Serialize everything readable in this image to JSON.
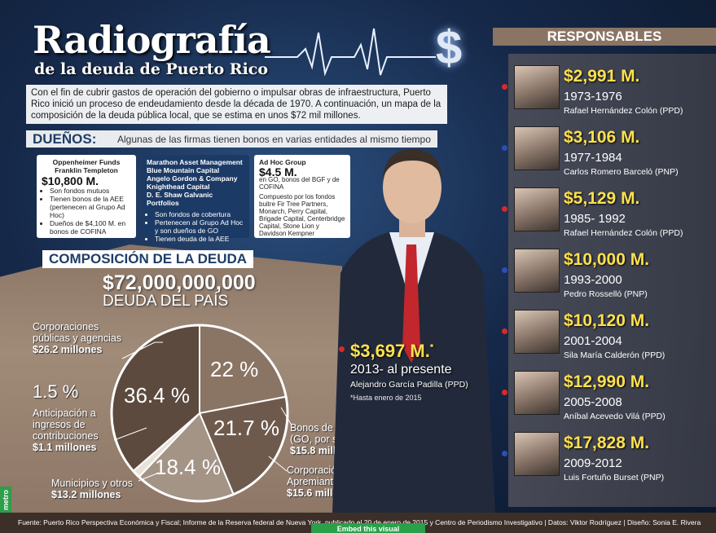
{
  "header": {
    "title": "Radiografía",
    "subtitle": "de la deuda de Puerto Rico",
    "intro": "Con el fin de cubrir gastos de operación del gobierno o impulsar obras de infraestructura, Puerto Rico inició un proceso de endeudamiento desde la década de 1970. A continuación, un mapa de la composición de la deuda pública local, que se estima en unos $72 mil millones."
  },
  "owners": {
    "label": "DUEÑOS:",
    "description": "Algunas de las firmas tienen bonos en varias entidades al mismo tiempo",
    "cards": [
      {
        "heading": [
          "Oppenheimer Funds",
          "Franklin Templeton"
        ],
        "amount": "$10,800 M.",
        "bullets": [
          "Son fondos mutuos",
          "Tienen bonos de la AEE (pertenecen al Grupo Ad Hoc)",
          "Dueños de $4,100 M. en bonos de COFINA"
        ]
      },
      {
        "heading": [
          "Marathon Asset Management",
          "Blue Mountain Capital",
          "Angelo Gordon & Company",
          "Knighthead Capital",
          "D. E. Shaw Galvanic Portfolios"
        ],
        "bullets": [
          "Son fondos de cobertura",
          "Pertenecen al Grupo Ad Hoc y son dueños de GO",
          "Tienen deuda de la AEE"
        ]
      },
      {
        "heading": [
          "Ad Hoc Group"
        ],
        "amount": "$4.5 M.",
        "note": "en GO, bonos del BGF y de COFINA",
        "detail": "Compuesto por los fondos buitre Fir Tree Partners, Monarch, Perry Capital, Brigade Capital, Centerbridge Capital, Stone Lion y Davidson Kempner"
      }
    ]
  },
  "composition": {
    "title": "COMPOSICIÓN DE LA DEUDA",
    "total": "$72,000,000,000",
    "total_label": "DEUDA DEL PAÍS"
  },
  "chart_data": {
    "type": "pie",
    "slices": [
      {
        "percent": 22,
        "label": "22 %",
        "category": "Bonos de obligación general (GO, por sus siglas en inglés)",
        "amount": "$15.8 millones",
        "color": "#8a7464"
      },
      {
        "percent": 21.7,
        "label": "21.7 %",
        "category": "Corporación del Fondo de Interés Apremiante (COFINA )",
        "amount": "$15.6 millones",
        "color": "#6e5a4d"
      },
      {
        "percent": 18.4,
        "label": "18.4 %",
        "category": "Municipios y otros",
        "amount": "$13.2 millones",
        "color": "#a39486"
      },
      {
        "percent": 1.5,
        "label": "1.5 %",
        "category": "Anticipación a ingresos de contribuciones",
        "amount": "$1.1 millones",
        "color": "#e8e2da"
      },
      {
        "percent": 36.4,
        "label": "36.4 %",
        "category": "Corporaciones públicas y agencias",
        "amount": "$26.2 millones",
        "color": "#5c4a3e"
      }
    ]
  },
  "current": {
    "amount": "$3,697 M.",
    "marker": "*",
    "period": "2013- al presente",
    "name": "Alejandro García Padilla (PPD)",
    "note": "*Hasta enero de 2015",
    "dot_color": "#d62a2a"
  },
  "responsables": {
    "title": "RESPONSABLES",
    "items": [
      {
        "amount": "$2,991 M.",
        "period": "1973-1976",
        "name": "Rafael Hernández Colón (PPD)",
        "dot_color": "#d62a2a"
      },
      {
        "amount": "$3,106 M.",
        "period": "1977-1984",
        "name": "Carlos Romero Barceló (PNP)",
        "dot_color": "#2a4fb8"
      },
      {
        "amount": "$5,129 M.",
        "period": "1985- 1992",
        "name": "Rafael Hernández Colón (PPD)",
        "dot_color": "#d62a2a"
      },
      {
        "amount": "$10,000 M.",
        "period": "1993-2000",
        "name": "Pedro Rosselló (PNP)",
        "dot_color": "#2a4fb8"
      },
      {
        "amount": "$10,120 M.",
        "period": "2001-2004",
        "name": "Sila María Calderón (PPD)",
        "dot_color": "#d62a2a"
      },
      {
        "amount": "$12,990 M.",
        "period": "2005-2008",
        "name": "Aníbal Acevedo Vilá (PPD)",
        "dot_color": "#d62a2a"
      },
      {
        "amount": "$17,828 M.",
        "period": "2009-2012",
        "name": "Luis Fortuño Burset (PNP)",
        "dot_color": "#2a4fb8"
      }
    ]
  },
  "footer": {
    "text": "Fuente: Puerto Rico Perspectiva Económica y Fiscal; Informe de la Reserva federal de Nueva York, publicado el 20 de enero de 2015 y Centro de Periodismo Investigativo | Datos: Viktor Rodríguez | Diseño: Sonia E. Rivera",
    "logo": "metro",
    "embed_label": "Embed this visual"
  }
}
